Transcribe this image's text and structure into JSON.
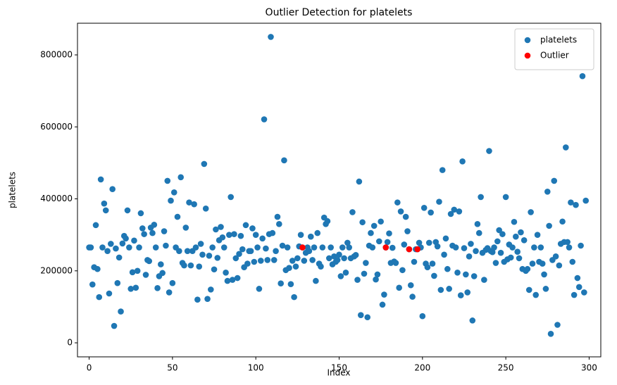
{
  "chart_data": {
    "type": "scatter",
    "title": "Outlier Detection for platelets",
    "x_label": "Index",
    "y_label": "platelets",
    "xlim": [
      -7,
      307
    ],
    "ylim": [
      -39000,
      888000
    ],
    "xticks": [
      0,
      50,
      100,
      150,
      200,
      250,
      300
    ],
    "yticks": [
      0,
      200000,
      400000,
      600000,
      800000
    ],
    "legend": "upper right",
    "series": [
      {
        "name": "platelets",
        "color": "#1f77b4",
        "x": [
          0,
          1,
          2,
          3,
          4,
          5,
          6,
          7,
          8,
          9,
          10,
          11,
          12,
          13,
          14,
          15,
          16,
          17,
          18,
          19,
          20,
          21,
          22,
          23,
          24,
          25,
          26,
          27,
          28,
          29,
          30,
          31,
          32,
          33,
          34,
          35,
          36,
          37,
          38,
          39,
          40,
          41,
          42,
          43,
          44,
          45,
          46,
          47,
          48,
          49,
          50,
          51,
          52,
          53,
          54,
          55,
          56,
          57,
          58,
          59,
          60,
          61,
          62,
          63,
          64,
          65,
          66,
          67,
          68,
          69,
          70,
          71,
          72,
          73,
          74,
          75,
          76,
          77,
          78,
          79,
          80,
          81,
          82,
          83,
          84,
          85,
          86,
          87,
          88,
          89,
          90,
          91,
          92,
          93,
          94,
          95,
          96,
          97,
          98,
          99,
          100,
          101,
          102,
          103,
          104,
          105,
          106,
          107,
          108,
          109,
          110,
          111,
          112,
          113,
          114,
          115,
          116,
          117,
          118,
          119,
          120,
          121,
          122,
          123,
          124,
          125,
          126,
          127,
          128,
          129,
          130,
          131,
          132,
          133,
          134,
          135,
          136,
          137,
          138,
          139,
          140,
          141,
          142,
          143,
          144,
          145,
          146,
          147,
          148,
          149,
          150,
          151,
          152,
          153,
          154,
          155,
          156,
          157,
          158,
          159,
          160,
          161,
          162,
          163,
          164,
          165,
          166,
          167,
          168,
          169,
          170,
          171,
          172,
          173,
          174,
          175,
          176,
          177,
          178,
          179,
          180,
          181,
          182,
          183,
          184,
          185,
          186,
          187,
          188,
          189,
          190,
          191,
          192,
          193,
          194,
          195,
          196,
          197,
          198,
          199,
          200,
          201,
          202,
          203,
          204,
          205,
          206,
          207,
          208,
          209,
          210,
          211,
          212,
          213,
          214,
          215,
          216,
          217,
          218,
          219,
          220,
          221,
          222,
          223,
          224,
          225,
          226,
          227,
          228,
          229,
          230,
          231,
          232,
          233,
          234,
          235,
          236,
          237,
          238,
          239,
          240,
          241,
          242,
          243,
          244,
          245,
          246,
          247,
          248,
          249,
          250,
          251,
          252,
          253,
          254,
          255,
          256,
          257,
          258,
          259,
          260,
          261,
          262,
          263,
          264,
          265,
          266,
          267,
          268,
          269,
          270,
          271,
          272,
          273,
          274,
          275,
          276,
          277,
          278,
          279,
          280,
          281,
          282,
          283,
          284,
          285,
          286,
          287,
          288,
          289,
          290,
          291,
          292,
          293,
          294,
          295,
          296,
          297,
          298
        ],
        "values": [
          265000,
          265000,
          162000,
          210000,
          327000,
          205000,
          127000,
          454000,
          265000,
          387000,
          368000,
          255000,
          137000,
          275000,
          427000,
          47000,
          262000,
          166000,
          237000,
          87000,
          276000,
          297000,
          290000,
          368000,
          265000,
          150000,
          196000,
          284000,
          153000,
          200000,
          265000,
          360000,
          318000,
          302000,
          189000,
          230000,
          227000,
          320000,
          305000,
          328000,
          265000,
          152000,
          185000,
          218000,
          194000,
          310000,
          270000,
          450000,
          140000,
          395000,
          166000,
          418000,
          265000,
          350000,
          255000,
          460000,
          222000,
          215000,
          320000,
          255000,
          390000,
          215000,
          255000,
          385000,
          265000,
          120000,
          212000,
          275000,
          245000,
          497000,
          373000,
          122000,
          242000,
          148000,
          265000,
          204000,
          315000,
          236000,
          285000,
          322000,
          293000,
          265000,
          195000,
          172000,
          300000,
          405000,
          175000,
          302000,
          235000,
          180000,
          247000,
          297000,
          260000,
          210000,
          327000,
          220000,
          255000,
          255000,
          318000,
          225000,
          300000,
          265000,
          150000,
          228000,
          290000,
          621000,
          262000,
          230000,
          302000,
          850000,
          305000,
          230000,
          255000,
          350000,
          330000,
          165000,
          270000,
          507000,
          202000,
          265000,
          208000,
          163000,
          228000,
          127000,
          212000,
          235000,
          268000,
          300000,
          265000,
          228000,
          250000,
          265000,
          255000,
          295000,
          230000,
          265000,
          172000,
          305000,
          220000,
          212000,
          265000,
          348000,
          330000,
          338000,
          235000,
          265000,
          218000,
          240000,
          225000,
          230000,
          245000,
          185000,
          265000,
          235000,
          195000,
          278000,
          265000,
          235000,
          363000,
          240000,
          244000,
          175000,
          448000,
          77000,
          335000,
          192000,
          222000,
          71000,
          270000,
          305000,
          265000,
          325000,
          176000,
          190000,
          282000,
          337000,
          106000,
          134000,
          265000,
          280000,
          304000,
          222000,
          264000,
          226000,
          222000,
          390000,
          153000,
          365000,
          202000,
          273000,
          350000,
          310000,
          260000,
          160000,
          128000,
          225000,
          260000,
          260000,
          278000,
          265000,
          74000,
          375000,
          220000,
          210000,
          278000,
          362000,
          220000,
          186000,
          280000,
          268000,
          392000,
          147000,
          480000,
          245000,
          290000,
          205000,
          150000,
          358000,
          270000,
          370000,
          265000,
          195000,
          365000,
          132000,
          504000,
          263000,
          190000,
          140000,
          240000,
          275000,
          62000,
          185000,
          255000,
          330000,
          305000,
          405000,
          250000,
          175000,
          258000,
          263000,
          533000,
          255000,
          252000,
          265000,
          222000,
          282000,
          313000,
          250000,
          302000,
          225000,
          405000,
          232000,
          273000,
          237000,
          265000,
          336000,
          295000,
          253000,
          235000,
          307000,
          205000,
          285000,
          200000,
          205000,
          147000,
          363000,
          220000,
          265000,
          133000,
          300000,
          225000,
          265000,
          220000,
          190000,
          150000,
          420000,
          325000,
          25000,
          230000,
          450000,
          240000,
          50000,
          215000,
          275000,
          337000,
          280000,
          543000,
          280000,
          265000,
          390000,
          225000,
          133000,
          383000,
          180000,
          155000,
          270000,
          741000,
          140000,
          395000
        ]
      },
      {
        "name": "Outlier",
        "color": "#ff0000",
        "x": [
          128,
          178,
          192,
          197
        ],
        "values": [
          265000,
          265000,
          260000,
          260000
        ]
      }
    ]
  }
}
